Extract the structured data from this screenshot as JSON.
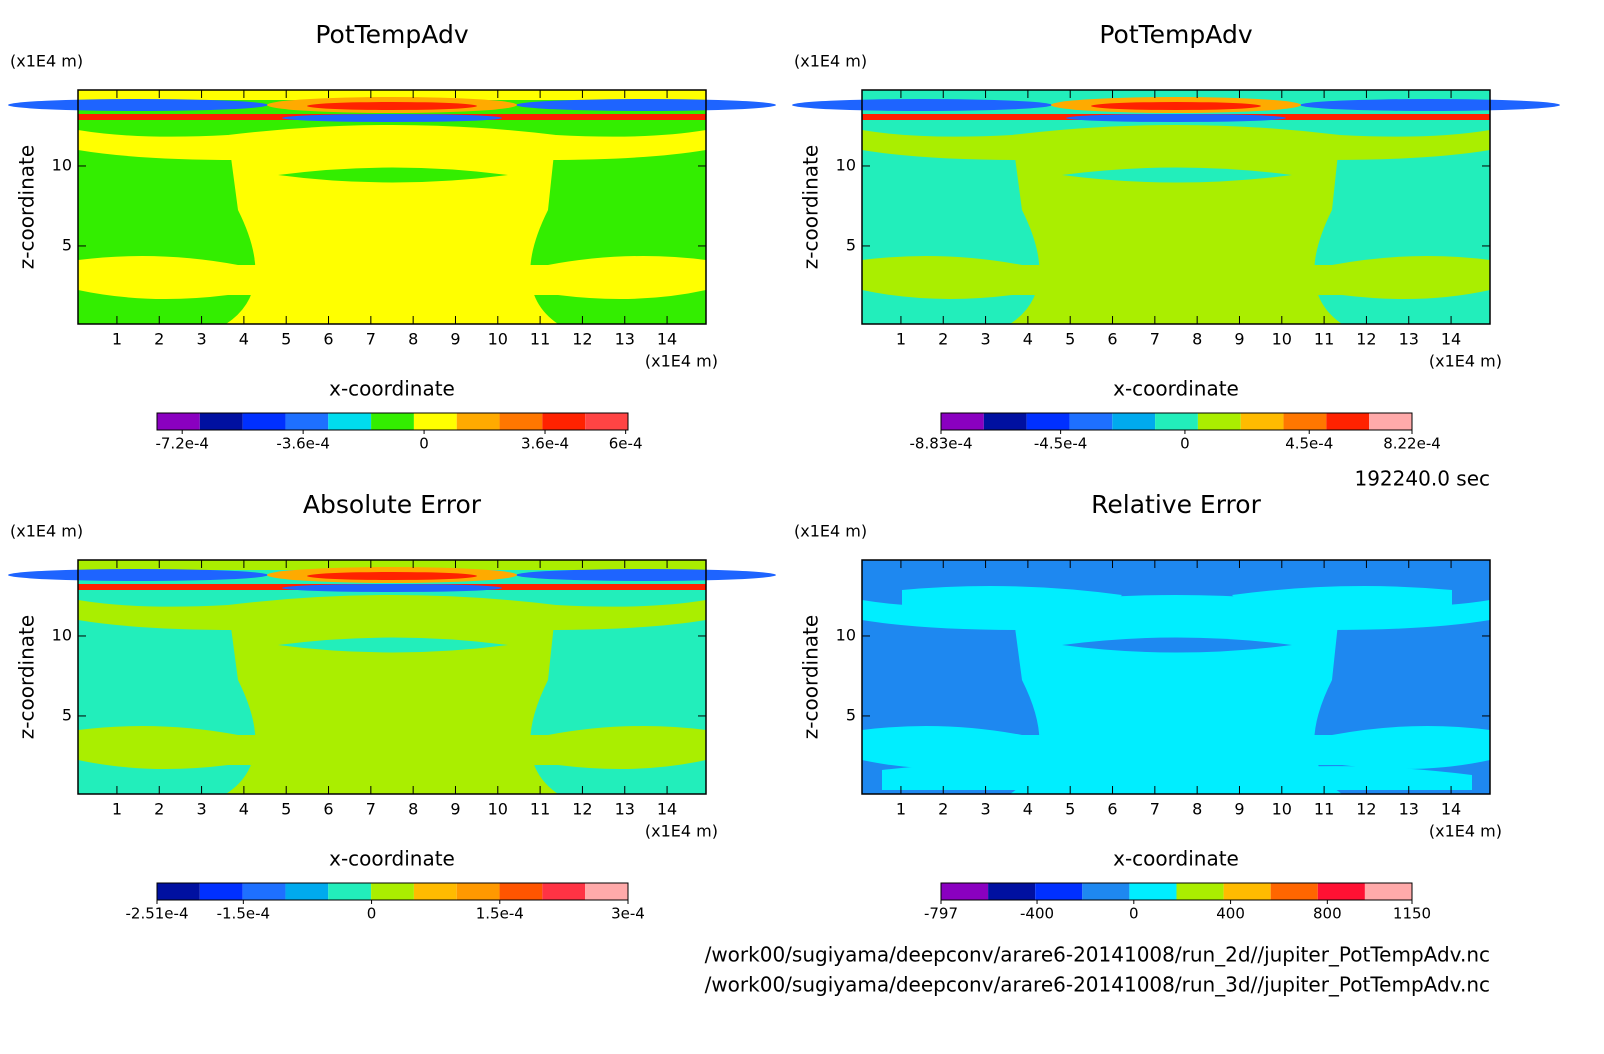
{
  "chart_data": [
    {
      "type": "contour",
      "title": "PotTempAdv",
      "xlabel": "x-coordinate",
      "ylabel": "z-coordinate",
      "xunit": "(x1E4 m)",
      "yunit": "(x1E4 m)",
      "xlim": [
        0.08,
        14.92
      ],
      "ylim": [
        0.12,
        14.75
      ],
      "xticks": [
        1,
        2,
        3,
        4,
        5,
        6,
        7,
        8,
        9,
        10,
        11,
        12,
        13,
        14
      ],
      "yticks": [
        5,
        10
      ],
      "colorbar": {
        "range": [
          -0.000795,
          0.000607
        ],
        "colors": [
          "#8a00c0",
          "#0010a0",
          "#0030ff",
          "#1e70ff",
          "#00ddee",
          "#33ee00",
          "#ffff00",
          "#ffaa00",
          "#ff7700",
          "#ff2200",
          "#ff4444"
        ],
        "ticks": [
          {
            "value": -0.00072,
            "label": "-7.2e-4"
          },
          {
            "value": -0.00036,
            "label": "-3.6e-4"
          },
          0,
          {
            "value": 0.00036,
            "label": "3.6e-4"
          },
          {
            "value": 0.0006,
            "label": "6e-4"
          }
        ]
      }
    },
    {
      "type": "contour",
      "title": "PotTempAdv",
      "xlabel": "x-coordinate",
      "ylabel": "z-coordinate",
      "xunit": "(x1E4 m)",
      "yunit": "(x1E4 m)",
      "xlim": [
        0.08,
        14.92
      ],
      "ylim": [
        0.12,
        14.75
      ],
      "xticks": [
        1,
        2,
        3,
        4,
        5,
        6,
        7,
        8,
        9,
        10,
        11,
        12,
        13,
        14
      ],
      "yticks": [
        5,
        10
      ],
      "colorbar": {
        "range": [
          -0.000883,
          0.000822
        ],
        "colors": [
          "#8a00c0",
          "#0010a0",
          "#0030ff",
          "#1e70ff",
          "#00aaee",
          "#22eebb",
          "#aaee00",
          "#ffbb00",
          "#ff7700",
          "#ff2200",
          "#ffaaaa"
        ],
        "ticks": [
          {
            "value": -0.000883,
            "label": "-8.83e-4"
          },
          {
            "value": -0.00045,
            "label": "-4.5e-4"
          },
          0,
          {
            "value": 0.00045,
            "label": "4.5e-4"
          },
          {
            "value": 0.000822,
            "label": "8.22e-4"
          }
        ]
      }
    },
    {
      "type": "contour",
      "title": "Absolute Error",
      "xlabel": "x-coordinate",
      "ylabel": "z-coordinate",
      "xunit": "(x1E4 m)",
      "yunit": "(x1E4 m)",
      "xlim": [
        0.08,
        14.92
      ],
      "ylim": [
        0.12,
        14.75
      ],
      "xticks": [
        1,
        2,
        3,
        4,
        5,
        6,
        7,
        8,
        9,
        10,
        11,
        12,
        13,
        14
      ],
      "yticks": [
        5,
        10
      ],
      "colorbar": {
        "range": [
          -0.000251,
          0.0003
        ],
        "colors": [
          "#0010a0",
          "#0030ff",
          "#1e70ff",
          "#00aaee",
          "#22eebb",
          "#aaee00",
          "#ffbb00",
          "#ff9900",
          "#ff5500",
          "#ff3344",
          "#ffaaaa"
        ],
        "ticks": [
          {
            "value": -0.000251,
            "label": "-2.51e-4"
          },
          {
            "value": -0.00015,
            "label": "-1.5e-4"
          },
          0,
          {
            "value": 0.00015,
            "label": "1.5e-4"
          },
          {
            "value": 0.0003,
            "label": "3e-4"
          }
        ]
      }
    },
    {
      "type": "contour",
      "title": "Relative Error",
      "xlabel": "x-coordinate",
      "ylabel": "z-coordinate",
      "xunit": "(x1E4 m)",
      "yunit": "(x1E4 m)",
      "xlim": [
        0.08,
        14.92
      ],
      "ylim": [
        0.12,
        14.75
      ],
      "xticks": [
        1,
        2,
        3,
        4,
        5,
        6,
        7,
        8,
        9,
        10,
        11,
        12,
        13,
        14
      ],
      "yticks": [
        5,
        10
      ],
      "colorbar": {
        "range": [
          -797,
          1150
        ],
        "colors": [
          "#8a00c0",
          "#0010a0",
          "#0030ff",
          "#1e88f0",
          "#00eeff",
          "#aaee00",
          "#ffbb00",
          "#ff6600",
          "#ff1133",
          "#ffaaaa"
        ],
        "ticks": [
          -797,
          -400,
          0,
          400,
          800,
          1150
        ]
      }
    }
  ],
  "time_label": "192240.0 sec",
  "files": [
    "/work00/sugiyama/deepconv/arare6-20141008/run_2d//jupiter_PotTempAdv.nc",
    "/work00/sugiyama/deepconv/arare6-20141008/run_3d//jupiter_PotTempAdv.nc"
  ]
}
